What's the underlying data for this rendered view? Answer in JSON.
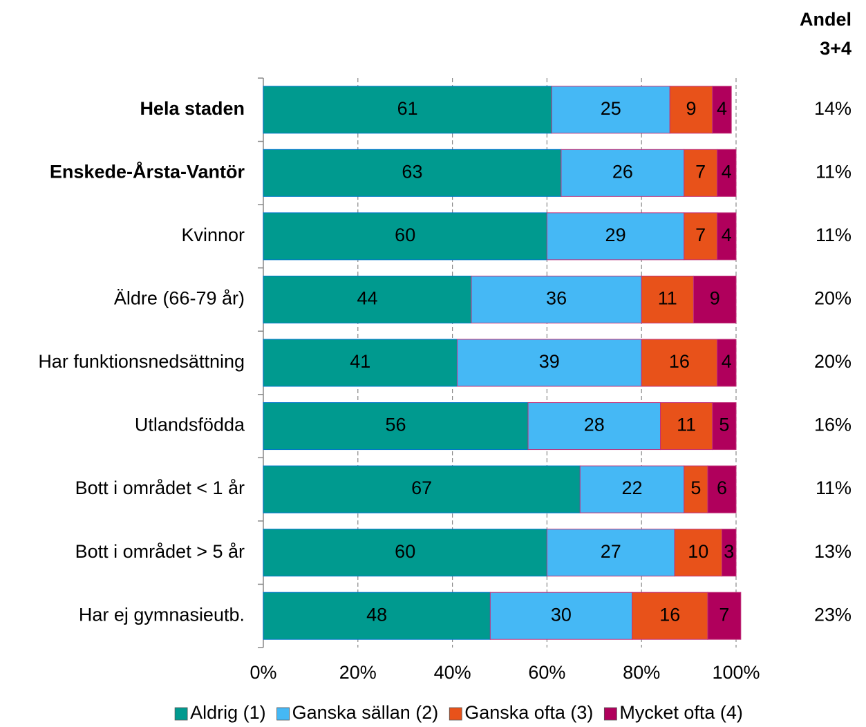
{
  "chart_data": {
    "type": "stacked_bar_horizontal",
    "categories": [
      "Hela staden",
      "Enskede-Årsta-Vantör",
      "Kvinnor",
      "Äldre (66-79 år)",
      "Har funktionsnedsättning",
      "Utlandsfödda",
      "Bott i området < 1 år",
      "Bott i området > 5 år",
      "Har ej gymnasieutb."
    ],
    "bold_categories": [
      true,
      true,
      false,
      false,
      false,
      false,
      false,
      false,
      false
    ],
    "series": [
      {
        "name": "Aldrig (1)",
        "color": "#009a8f",
        "label_color": "#ffffff",
        "values": [
          61,
          63,
          60,
          44,
          41,
          56,
          67,
          60,
          48
        ]
      },
      {
        "name": "Ganska sällan (2)",
        "color": "#45b8f5",
        "label_color": "#000000",
        "values": [
          25,
          26,
          29,
          36,
          39,
          28,
          22,
          27,
          30
        ]
      },
      {
        "name": "Ganska ofta (3)",
        "color": "#e8521a",
        "label_color": "#ffffff",
        "values": [
          9,
          7,
          7,
          11,
          16,
          11,
          5,
          10,
          16
        ]
      },
      {
        "name": "Mycket ofta (4)",
        "color": "#b0005c",
        "label_color": "#ffffff",
        "values": [
          4,
          4,
          4,
          9,
          4,
          5,
          6,
          3,
          7
        ]
      }
    ],
    "xlim": [
      0,
      100
    ],
    "xticks": [
      {
        "value": 0,
        "label": "0%"
      },
      {
        "value": 20,
        "label": "20%"
      },
      {
        "value": 40,
        "label": "40%"
      },
      {
        "value": 60,
        "label": "60%"
      },
      {
        "value": 80,
        "label": "80%"
      },
      {
        "value": 100,
        "label": "100%"
      }
    ],
    "grid": true,
    "legend": "bottom",
    "side_column": {
      "header": [
        "Andel",
        "3+4"
      ],
      "labels": [
        "14%",
        "11%",
        "11%",
        "20%",
        "20%",
        "16%",
        "11%",
        "13%",
        "23%"
      ]
    }
  }
}
